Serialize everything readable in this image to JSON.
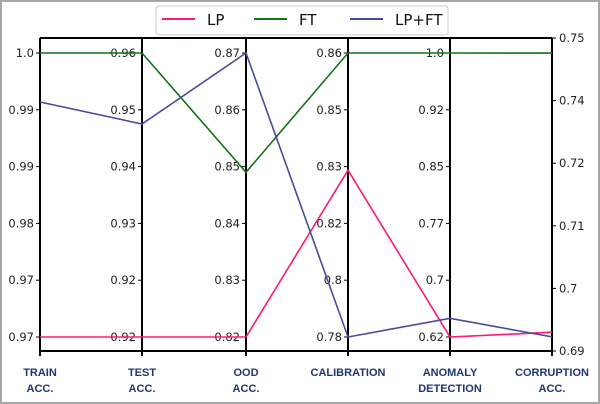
{
  "chart_data": {
    "type": "parallel-coordinates",
    "title": "",
    "axes": [
      {
        "name": [
          "TRAIN",
          "ACC."
        ],
        "lo": 0.968,
        "hi": 0.997,
        "tick_labels": [
          "0.97",
          "0.97",
          "0.98",
          "0.99",
          "0.99",
          "1.0"
        ]
      },
      {
        "name": [
          "TEST",
          "ACC."
        ],
        "lo": 0.92,
        "hi": 0.96,
        "tick_labels": [
          "0.92",
          "0.92",
          "0.93",
          "0.94",
          "0.95",
          "0.96"
        ]
      },
      {
        "name": [
          "OOD",
          "ACC."
        ],
        "lo": 0.82,
        "hi": 0.87,
        "tick_labels": [
          "0.82",
          "0.83",
          "0.84",
          "0.85",
          "0.86",
          "0.87"
        ]
      },
      {
        "name": [
          "CALIBRATION",
          ""
        ],
        "lo": 0.78,
        "hi": 0.86,
        "tick_labels": [
          "0.78",
          "0.8",
          "0.82",
          "0.83",
          "0.85",
          "0.86"
        ]
      },
      {
        "name": [
          "ANOMALY",
          "DETECTION"
        ],
        "lo": 0.62,
        "hi": 1.0,
        "tick_labels": [
          "0.62",
          "0.7",
          "0.77",
          "0.85",
          "0.92",
          "1.0"
        ]
      },
      {
        "name": [
          "CORRUPTION",
          "ACC."
        ],
        "lo": 0.69,
        "hi": 0.75,
        "right_axis": true,
        "tick_labels": [
          "0.69",
          "0.7",
          "0.71",
          "0.72",
          "0.74",
          "0.75"
        ]
      }
    ],
    "series": [
      {
        "name": "LP",
        "color": "#ff1a75",
        "values": [
          0.968,
          0.92,
          0.82,
          0.827,
          0.62,
          0.6936
        ]
      },
      {
        "name": "FT",
        "color": "#137313",
        "values": [
          0.997,
          0.96,
          0.849,
          0.86,
          1.0,
          0.7471
        ]
      },
      {
        "name": "LP+FT",
        "color": "#4a4a9e",
        "values": [
          0.992,
          0.95,
          0.87,
          0.78,
          0.645,
          0.6927
        ]
      }
    ],
    "legend_position": "top-center",
    "grid": false
  }
}
